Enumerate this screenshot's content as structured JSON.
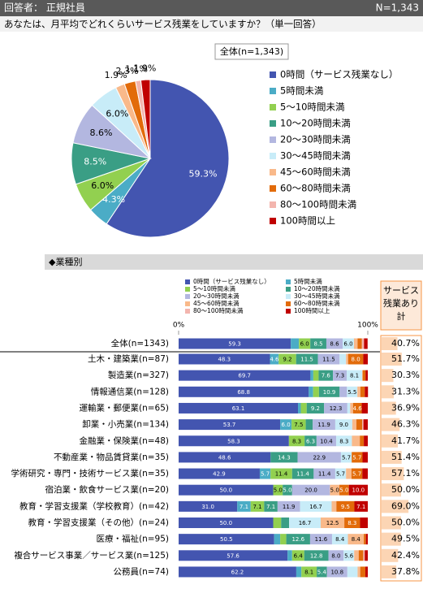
{
  "header": {
    "respondent": "回答者： 正規社員",
    "n": "N=1,343",
    "question": "あなたは、月平均でどれくらいサービス残業をしていますか？（単一回答）"
  },
  "chart_data": [
    {
      "type": "pie",
      "title": "全体(n=1,343)",
      "categories": [
        "0時間（サービス残業なし）",
        "5時間未満",
        "5～10時間未満",
        "10～20時間未満",
        "20～30時間未満",
        "30～45時間未満",
        "45～60時間未満",
        "60～80時間未満",
        "80～100時間未満",
        "100時間以上"
      ],
      "values": [
        59.3,
        4.3,
        6.0,
        8.5,
        8.6,
        6.0,
        1.9,
        2.3,
        1.1,
        1.9
      ],
      "value_labels": [
        "59.3%",
        "4.3%",
        "6.0%",
        "8.5%",
        "8.6%",
        "6.0%",
        "1.9%",
        "2.3%",
        "1.1%",
        "1.9%"
      ],
      "colors": [
        "#4355b0",
        "#4bacc6",
        "#92d050",
        "#3a9e85",
        "#b3b7e0",
        "#c8ecf8",
        "#f9b98a",
        "#e26b0a",
        "#f3b5ae",
        "#c00000"
      ]
    },
    {
      "type": "stacked_bar",
      "title": "◆業種別",
      "categories": [
        "全体(n=1343)",
        "土木・建築業(n=87)",
        "製造業(n=327)",
        "情報通信業(n=128)",
        "運輸業・郵便業(n=65)",
        "卸業・小売業(n=134)",
        "金融業・保険業(n=48)",
        "不動産業・物品賃貸業(n=35)",
        "学術研究・専門・技術サービス業(n=35)",
        "宿泊業・飲食サービス業(n=20)",
        "教育・学習支援業（学校教育）(n=42)",
        "教育・学習支援業（その他）(n=24)",
        "医療・福祉(n=95)",
        "複合サービス事業／サービス業(n=125)",
        "公務員(n=74)"
      ],
      "xlim": [
        0,
        100
      ],
      "xticks": [
        {
          "value": 0,
          "label": "0%"
        },
        {
          "value": 100,
          "label": "100%"
        }
      ],
      "series": [
        {
          "name": "0時間（サービス残業なし）",
          "color": "#4355b0",
          "values": [
            59.3,
            48.3,
            69.7,
            68.8,
            63.1,
            53.7,
            58.3,
            48.6,
            42.9,
            50.0,
            31.0,
            50.0,
            50.5,
            57.6,
            62.2
          ],
          "value_labels": [
            "59.3",
            "48.3",
            "69.7",
            "68.8",
            "63.1",
            "53.7",
            "58.3",
            "48.6",
            "42.9",
            "50.0",
            "31.0",
            "50.0",
            "50.5",
            "57.6",
            "62.2"
          ]
        },
        {
          "name": "5時間未満",
          "color": "#4bacc6",
          "values": [
            4.3,
            4.6,
            1.5,
            2.3,
            1.5,
            6.0,
            0.0,
            0.0,
            5.7,
            0.0,
            7.1,
            0.0,
            3.2,
            2.4,
            2.7
          ],
          "value_labels": [
            null,
            "4.6",
            null,
            null,
            null,
            "6.0",
            null,
            null,
            "5.7",
            null,
            "7.1",
            null,
            null,
            null,
            null
          ]
        },
        {
          "name": "5～10時間未満",
          "color": "#92d050",
          "values": [
            6.0,
            9.2,
            2.8,
            3.1,
            3.1,
            7.5,
            8.3,
            0.0,
            11.4,
            5.0,
            7.1,
            4.2,
            3.2,
            6.4,
            8.1
          ],
          "value_labels": [
            "6.0",
            "9.2",
            null,
            null,
            null,
            "7.5",
            "8.3",
            null,
            "11.4",
            "5.0",
            "7.1",
            null,
            null,
            "6.4",
            "8.1"
          ]
        },
        {
          "name": "10～20時間未満",
          "color": "#3a9e85",
          "values": [
            8.5,
            11.5,
            7.6,
            10.9,
            9.2,
            3.7,
            6.3,
            14.3,
            11.4,
            5.0,
            7.1,
            4.2,
            12.6,
            12.8,
            5.4
          ],
          "value_labels": [
            "8.5",
            "11.5",
            "7.6",
            "10.9",
            "9.2",
            null,
            "6.3",
            "14.3",
            "11.4",
            "5.0",
            "7.1",
            null,
            "12.6",
            "12.8",
            "5.4"
          ]
        },
        {
          "name": "20～30時間未満",
          "color": "#b3b7e0",
          "values": [
            8.6,
            11.5,
            7.3,
            3.9,
            12.3,
            11.9,
            10.4,
            22.9,
            11.4,
            20.0,
            11.9,
            0.0,
            11.6,
            8.0,
            10.8
          ],
          "value_labels": [
            "8.6",
            "11.5",
            "7.3",
            null,
            "12.3",
            "11.9",
            "10.4",
            "22.9",
            "11.4",
            "20.0",
            "11.9",
            null,
            "11.6",
            "8.0",
            "10.8"
          ]
        },
        {
          "name": "30～45時間未満",
          "color": "#c8ecf8",
          "values": [
            6.0,
            3.4,
            8.1,
            5.5,
            1.5,
            9.0,
            8.3,
            5.7,
            5.7,
            0.0,
            16.7,
            16.7,
            8.4,
            5.6,
            5.4
          ],
          "value_labels": [
            "6.0",
            null,
            "8.1",
            "5.5",
            null,
            "9.0",
            "8.3",
            "5.7",
            "5.7",
            null,
            "16.7",
            "16.7",
            "8.4",
            "5.6",
            null
          ]
        },
        {
          "name": "45～60時間未満",
          "color": "#f9b98a",
          "values": [
            1.9,
            1.1,
            0.3,
            1.6,
            1.5,
            2.2,
            4.2,
            0.0,
            2.9,
            5.0,
            2.5,
            12.5,
            8.4,
            2.4,
            1.4
          ],
          "value_labels": [
            null,
            null,
            null,
            null,
            null,
            null,
            null,
            null,
            null,
            "5.0",
            null,
            "12.5",
            "8.4",
            null,
            null
          ]
        },
        {
          "name": "60～80時間未満",
          "color": "#e26b0a",
          "values": [
            2.3,
            8.0,
            1.5,
            2.3,
            4.6,
            3.0,
            2.1,
            5.7,
            5.7,
            5.0,
            9.5,
            8.3,
            1.1,
            2.4,
            2.7
          ],
          "value_labels": [
            null,
            "8.0",
            null,
            null,
            "4.6",
            null,
            null,
            "5.7",
            "5.7",
            "5.0",
            "9.5",
            "8.3",
            null,
            null,
            null
          ]
        },
        {
          "name": "80～100時間未満",
          "color": "#f3b5ae",
          "values": [
            1.1,
            0.0,
            0.0,
            0.0,
            0.0,
            0.7,
            0.0,
            0.0,
            0.0,
            0.0,
            0.0,
            0.0,
            0.0,
            0.8,
            0.0
          ],
          "value_labels": [
            null,
            null,
            null,
            null,
            null,
            null,
            null,
            null,
            null,
            null,
            null,
            null,
            null,
            null,
            null
          ]
        },
        {
          "name": "100時間以上",
          "color": "#c00000",
          "values": [
            1.9,
            2.4,
            1.2,
            1.7,
            3.2,
            2.3,
            2.1,
            2.8,
            2.9,
            10.0,
            7.1,
            4.1,
            1.0,
            1.6,
            1.3
          ],
          "value_labels": [
            null,
            null,
            null,
            null,
            null,
            null,
            null,
            null,
            null,
            "10.0",
            "7.1",
            null,
            null,
            null,
            null
          ]
        }
      ],
      "totals": {
        "title": "サービス残業あり計",
        "color": "#fcd5b4",
        "values": [
          40.7,
          51.7,
          30.3,
          31.3,
          36.9,
          46.3,
          41.7,
          51.4,
          57.1,
          50.0,
          69.0,
          50.0,
          49.5,
          42.4,
          37.8
        ],
        "value_labels": [
          "40.7%",
          "51.7%",
          "30.3%",
          "31.3%",
          "36.9%",
          "46.3%",
          "41.7%",
          "51.4%",
          "57.1%",
          "50.0%",
          "69.0%",
          "50.0%",
          "49.5%",
          "42.4%",
          "37.8%"
        ]
      }
    }
  ]
}
